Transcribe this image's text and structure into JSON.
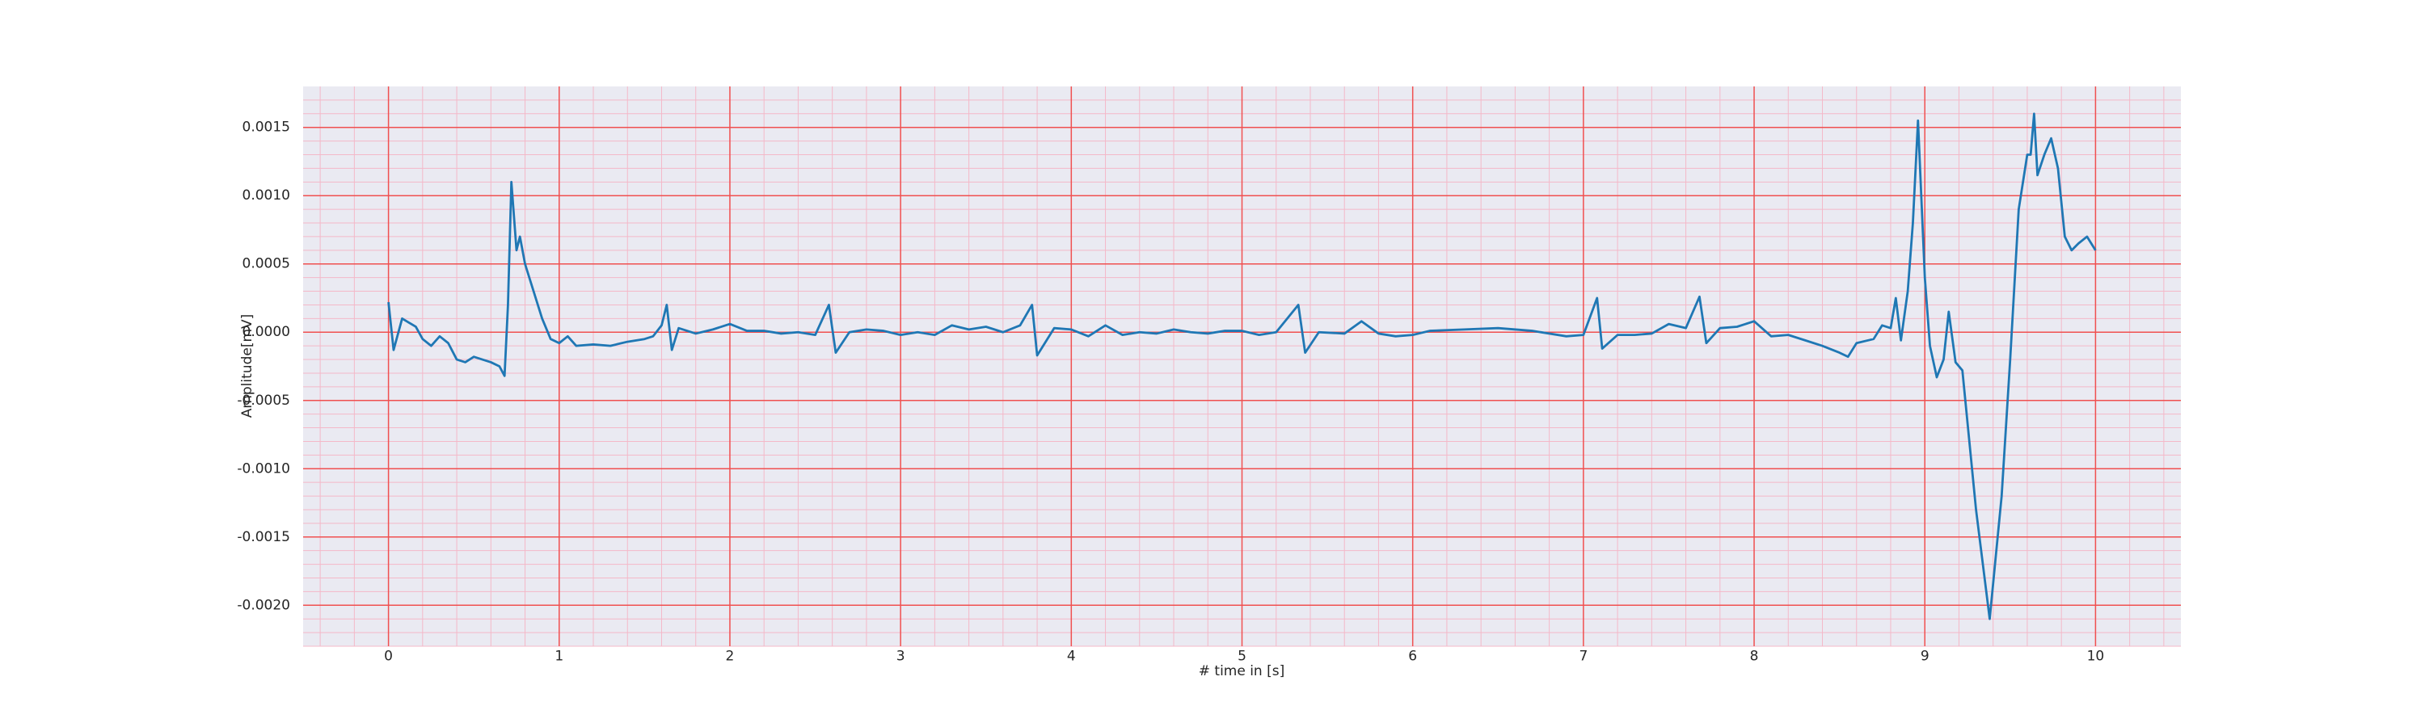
{
  "chart_data": {
    "type": "line",
    "xlabel": "# time in [s]",
    "ylabel": "Amplitude[mV]",
    "grid": true,
    "minor_grid": true,
    "xlim": [
      -0.5,
      10.5
    ],
    "ylim": [
      -0.0023,
      0.0018
    ],
    "xticks": [
      0,
      1,
      2,
      3,
      4,
      5,
      6,
      7,
      8,
      9,
      10
    ],
    "yticks": [
      0.0015,
      {
        "value": 0.001,
        "label": "0.0010"
      },
      0.0005,
      {
        "value": 0,
        "label": "0.0000"
      },
      -0.0005,
      {
        "value": -0.001,
        "label": "-0.0010"
      },
      -0.0015,
      {
        "value": -0.002,
        "label": "-0.0020"
      }
    ],
    "x": [
      0,
      0.03,
      0.08,
      0.12,
      0.16,
      0.2,
      0.25,
      0.3,
      0.35,
      0.4,
      0.45,
      0.5,
      0.55,
      0.6,
      0.65,
      0.68,
      0.7,
      0.72,
      0.75,
      0.77,
      0.8,
      0.85,
      0.9,
      0.95,
      1.0,
      1.05,
      1.1,
      1.2,
      1.3,
      1.4,
      1.5,
      1.55,
      1.6,
      1.63,
      1.66,
      1.7,
      1.8,
      1.9,
      2.0,
      2.1,
      2.2,
      2.3,
      2.4,
      2.5,
      2.58,
      2.62,
      2.7,
      2.8,
      2.9,
      3.0,
      3.1,
      3.2,
      3.3,
      3.4,
      3.5,
      3.6,
      3.7,
      3.77,
      3.8,
      3.9,
      4.0,
      4.1,
      4.2,
      4.3,
      4.4,
      4.5,
      4.6,
      4.7,
      4.8,
      4.9,
      5.0,
      5.1,
      5.2,
      5.33,
      5.37,
      5.45,
      5.6,
      5.7,
      5.8,
      5.9,
      6.0,
      6.1,
      6.3,
      6.5,
      6.7,
      6.9,
      7.0,
      7.08,
      7.11,
      7.2,
      7.3,
      7.4,
      7.5,
      7.6,
      7.68,
      7.72,
      7.8,
      7.9,
      8.0,
      8.1,
      8.2,
      8.3,
      8.4,
      8.5,
      8.55,
      8.6,
      8.7,
      8.75,
      8.8,
      8.83,
      8.86,
      8.9,
      8.93,
      8.96,
      9.0,
      9.03,
      9.07,
      9.11,
      9.14,
      9.18,
      9.22,
      9.3,
      9.38,
      9.45,
      9.5,
      9.55,
      9.6,
      9.62,
      9.64,
      9.66,
      9.7,
      9.74,
      9.78,
      9.82,
      9.86,
      9.9,
      9.95,
      10.0
    ],
    "series": [
      {
        "color": "#1f77b4",
        "values": [
          0.00022,
          -0.00013,
          0.0001,
          7e-05,
          4e-05,
          -5e-05,
          -0.0001,
          -3e-05,
          -8e-05,
          -0.0002,
          -0.00022,
          -0.00018,
          -0.0002,
          -0.00022,
          -0.00025,
          -0.00032,
          0.0002,
          0.0011,
          0.0006,
          0.0007,
          0.0005,
          0.0003,
          0.0001,
          -5e-05,
          -8e-05,
          -3e-05,
          -0.0001,
          -9e-05,
          -0.0001,
          -7e-05,
          -5e-05,
          -3e-05,
          5e-05,
          0.0002,
          -0.00013,
          3e-05,
          -1e-05,
          2e-05,
          6e-05,
          1e-05,
          1e-05,
          -1e-05,
          0,
          -2e-05,
          0.0002,
          -0.00015,
          0,
          2e-05,
          1e-05,
          -2e-05,
          0,
          -2e-05,
          5e-05,
          2e-05,
          4e-05,
          0,
          5e-05,
          0.0002,
          -0.00017,
          3e-05,
          2e-05,
          -3e-05,
          5e-05,
          -2e-05,
          0,
          -1e-05,
          2e-05,
          0,
          -1e-05,
          1e-05,
          1e-05,
          -2e-05,
          0,
          0.0002,
          -0.00015,
          0,
          -1e-05,
          8e-05,
          -1e-05,
          -3e-05,
          -2e-05,
          1e-05,
          2e-05,
          3e-05,
          1e-05,
          -3e-05,
          -2e-05,
          0.00025,
          -0.00012,
          -2e-05,
          -2e-05,
          -1e-05,
          6e-05,
          3e-05,
          0.00026,
          -8e-05,
          3e-05,
          4e-05,
          8e-05,
          -3e-05,
          -2e-05,
          -6e-05,
          -0.0001,
          -0.00015,
          -0.00018,
          -8e-05,
          -5e-05,
          5e-05,
          3e-05,
          0.00025,
          -6e-05,
          0.0003,
          0.0008,
          0.00155,
          0.0004,
          -0.0001,
          -0.00033,
          -0.0002,
          0.00015,
          -0.00022,
          -0.00028,
          -0.0013,
          -0.0021,
          -0.0012,
          -0.0002,
          0.0009,
          0.0013,
          0.0013,
          0.0016,
          0.00115,
          0.0013,
          0.00142,
          0.0012,
          0.0007,
          0.0006,
          0.00065,
          0.0007,
          0.0006
        ]
      }
    ]
  }
}
